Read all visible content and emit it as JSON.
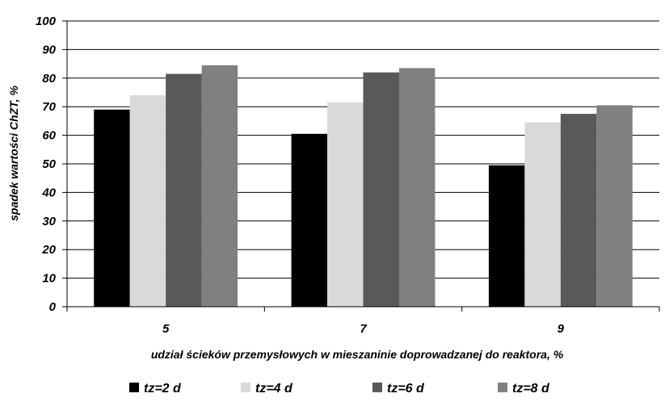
{
  "chart_data": {
    "type": "bar",
    "categories": [
      "5",
      "7",
      "9"
    ],
    "series": [
      {
        "name": "tz=2 d",
        "color": "#000000",
        "values": [
          69,
          60.5,
          49.5
        ]
      },
      {
        "name": "tz=4 d",
        "color": "#d9d9d9",
        "values": [
          74,
          71.5,
          64.5
        ]
      },
      {
        "name": "tz=6 d",
        "color": "#595959",
        "values": [
          81.5,
          82,
          67.5
        ]
      },
      {
        "name": "tz=8 d",
        "color": "#808080",
        "values": [
          84.5,
          83.5,
          70.5
        ]
      }
    ],
    "ylim": [
      0,
      100
    ],
    "ytick_step": 10,
    "grid": true,
    "legend_position": "bottom",
    "xlabel": "udział ścieków przemysłowych w mieszaninie doprowadzanej do reaktora, %",
    "ylabel": "spadek wartości ChZT, %",
    "title": ""
  }
}
